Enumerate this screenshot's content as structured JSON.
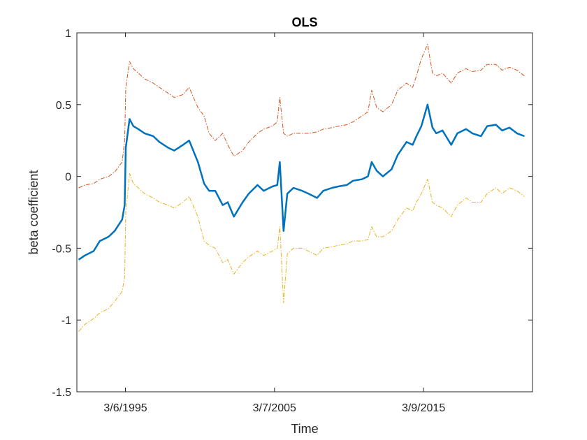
{
  "chart_data": {
    "type": "line",
    "title": "OLS",
    "xlabel": "Time",
    "ylabel": "beta coefficient",
    "x_type": "date",
    "xlim": [
      "1991-12-01",
      "2022-07-01"
    ],
    "ylim": [
      -1.5,
      1
    ],
    "x_ticks": [
      {
        "date": "1995-03-06",
        "label": "3/6/1995"
      },
      {
        "date": "2005-03-07",
        "label": "3/7/2005"
      },
      {
        "date": "2015-03-09",
        "label": "3/9/2015"
      }
    ],
    "y_ticks": [
      {
        "value": 1,
        "label": "1"
      },
      {
        "value": 0.5,
        "label": "0.5"
      },
      {
        "value": 0,
        "label": "0"
      },
      {
        "value": -0.5,
        "label": "-0.5"
      },
      {
        "value": -1,
        "label": "-1"
      },
      {
        "value": -1.5,
        "label": "-1.5"
      }
    ],
    "grid": false,
    "legend": "none",
    "series": [
      {
        "role": "upper-band",
        "color": "#D95319",
        "style": "dashdot",
        "x": [
          "1992-01",
          "1992-06",
          "1993-01",
          "1993-06",
          "1994-01",
          "1994-06",
          "1994-12",
          "1995-02",
          "1995-03",
          "1995-06",
          "1995-09",
          "1996-01",
          "1996-06",
          "1997-01",
          "1997-06",
          "1998-01",
          "1998-06",
          "1999-01",
          "1999-06",
          "2000-01",
          "2000-06",
          "2000-10",
          "2001-03",
          "2001-09",
          "2002-01",
          "2002-06",
          "2003-01",
          "2003-06",
          "2004-01",
          "2004-06",
          "2005-01",
          "2005-05",
          "2005-07",
          "2005-10",
          "2006-01",
          "2006-06",
          "2007-01",
          "2007-06",
          "2008-01",
          "2008-06",
          "2009-01",
          "2009-06",
          "2010-01",
          "2010-06",
          "2011-01",
          "2011-06",
          "2011-09",
          "2012-01",
          "2012-06",
          "2013-01",
          "2013-06",
          "2014-01",
          "2014-06",
          "2014-09",
          "2015-01",
          "2015-06",
          "2015-10",
          "2016-01",
          "2016-06",
          "2017-01",
          "2017-06",
          "2018-01",
          "2018-06",
          "2019-01",
          "2019-06",
          "2020-01",
          "2020-06",
          "2020-12",
          "2021-06",
          "2021-12"
        ],
        "y": [
          -0.08,
          -0.06,
          -0.05,
          -0.02,
          0.0,
          0.03,
          0.1,
          0.25,
          0.62,
          0.8,
          0.75,
          0.72,
          0.68,
          0.65,
          0.62,
          0.58,
          0.55,
          0.57,
          0.62,
          0.48,
          0.42,
          0.3,
          0.25,
          0.3,
          0.22,
          0.14,
          0.18,
          0.24,
          0.3,
          0.33,
          0.35,
          0.38,
          0.55,
          0.3,
          0.28,
          0.3,
          0.3,
          0.3,
          0.31,
          0.33,
          0.34,
          0.35,
          0.36,
          0.38,
          0.42,
          0.45,
          0.6,
          0.48,
          0.45,
          0.5,
          0.6,
          0.65,
          0.62,
          0.7,
          0.82,
          0.92,
          0.72,
          0.7,
          0.72,
          0.65,
          0.72,
          0.75,
          0.73,
          0.74,
          0.78,
          0.78,
          0.74,
          0.76,
          0.74,
          0.7
        ]
      },
      {
        "role": "estimate",
        "color": "#0072BD",
        "style": "solid",
        "x": [
          "1992-01",
          "1992-06",
          "1993-01",
          "1993-06",
          "1994-01",
          "1994-06",
          "1994-12",
          "1995-02",
          "1995-03",
          "1995-06",
          "1995-09",
          "1996-01",
          "1996-06",
          "1997-01",
          "1997-06",
          "1998-01",
          "1998-06",
          "1999-01",
          "1999-06",
          "2000-01",
          "2000-06",
          "2000-10",
          "2001-03",
          "2001-09",
          "2002-01",
          "2002-06",
          "2003-01",
          "2003-06",
          "2004-01",
          "2004-06",
          "2005-01",
          "2005-05",
          "2005-07",
          "2005-10",
          "2006-01",
          "2006-06",
          "2007-01",
          "2007-06",
          "2008-01",
          "2008-06",
          "2009-01",
          "2009-06",
          "2010-01",
          "2010-06",
          "2011-01",
          "2011-06",
          "2011-09",
          "2012-01",
          "2012-06",
          "2013-01",
          "2013-06",
          "2014-01",
          "2014-06",
          "2014-09",
          "2015-01",
          "2015-06",
          "2015-10",
          "2016-01",
          "2016-06",
          "2017-01",
          "2017-06",
          "2018-01",
          "2018-06",
          "2019-01",
          "2019-06",
          "2020-01",
          "2020-06",
          "2020-12",
          "2021-06",
          "2021-12"
        ],
        "y": [
          -0.58,
          -0.55,
          -0.52,
          -0.45,
          -0.42,
          -0.38,
          -0.3,
          -0.2,
          0.2,
          0.4,
          0.35,
          0.33,
          0.3,
          0.28,
          0.24,
          0.2,
          0.18,
          0.22,
          0.25,
          0.1,
          -0.05,
          -0.1,
          -0.1,
          -0.2,
          -0.18,
          -0.28,
          -0.18,
          -0.12,
          -0.06,
          -0.1,
          -0.07,
          -0.06,
          0.1,
          -0.38,
          -0.12,
          -0.08,
          -0.1,
          -0.12,
          -0.15,
          -0.1,
          -0.08,
          -0.07,
          -0.06,
          -0.03,
          -0.02,
          0.0,
          0.1,
          0.04,
          0.0,
          0.05,
          0.15,
          0.24,
          0.22,
          0.28,
          0.35,
          0.5,
          0.34,
          0.3,
          0.32,
          0.22,
          0.3,
          0.33,
          0.3,
          0.28,
          0.35,
          0.36,
          0.32,
          0.34,
          0.3,
          0.28
        ]
      },
      {
        "role": "lower-band",
        "color": "#EDB120",
        "style": "dashdot",
        "x": [
          "1992-01",
          "1992-06",
          "1993-01",
          "1993-06",
          "1994-01",
          "1994-06",
          "1994-12",
          "1995-02",
          "1995-03",
          "1995-06",
          "1995-09",
          "1996-01",
          "1996-06",
          "1997-01",
          "1997-06",
          "1998-01",
          "1998-06",
          "1999-01",
          "1999-06",
          "2000-01",
          "2000-06",
          "2000-10",
          "2001-03",
          "2001-09",
          "2002-01",
          "2002-06",
          "2003-01",
          "2003-06",
          "2004-01",
          "2004-06",
          "2005-01",
          "2005-05",
          "2005-07",
          "2005-10",
          "2006-01",
          "2006-06",
          "2007-01",
          "2007-06",
          "2008-01",
          "2008-06",
          "2009-01",
          "2009-06",
          "2010-01",
          "2010-06",
          "2011-01",
          "2011-06",
          "2011-09",
          "2012-01",
          "2012-06",
          "2013-01",
          "2013-06",
          "2014-01",
          "2014-06",
          "2014-09",
          "2015-01",
          "2015-06",
          "2015-10",
          "2016-01",
          "2016-06",
          "2017-01",
          "2017-06",
          "2018-01",
          "2018-06",
          "2019-01",
          "2019-06",
          "2020-01",
          "2020-06",
          "2020-12",
          "2021-06",
          "2021-12"
        ],
        "y": [
          -1.08,
          -1.03,
          -0.99,
          -0.95,
          -0.92,
          -0.87,
          -0.8,
          -0.7,
          -0.25,
          0.02,
          -0.05,
          -0.08,
          -0.12,
          -0.15,
          -0.18,
          -0.2,
          -0.22,
          -0.18,
          -0.14,
          -0.28,
          -0.45,
          -0.48,
          -0.5,
          -0.6,
          -0.58,
          -0.68,
          -0.6,
          -0.56,
          -0.52,
          -0.55,
          -0.52,
          -0.5,
          -0.35,
          -0.88,
          -0.54,
          -0.5,
          -0.5,
          -0.52,
          -0.55,
          -0.5,
          -0.49,
          -0.48,
          -0.47,
          -0.45,
          -0.45,
          -0.44,
          -0.35,
          -0.42,
          -0.42,
          -0.38,
          -0.3,
          -0.22,
          -0.24,
          -0.18,
          -0.12,
          -0.02,
          -0.18,
          -0.2,
          -0.22,
          -0.28,
          -0.2,
          -0.15,
          -0.18,
          -0.18,
          -0.12,
          -0.08,
          -0.12,
          -0.08,
          -0.1,
          -0.14
        ]
      }
    ]
  }
}
